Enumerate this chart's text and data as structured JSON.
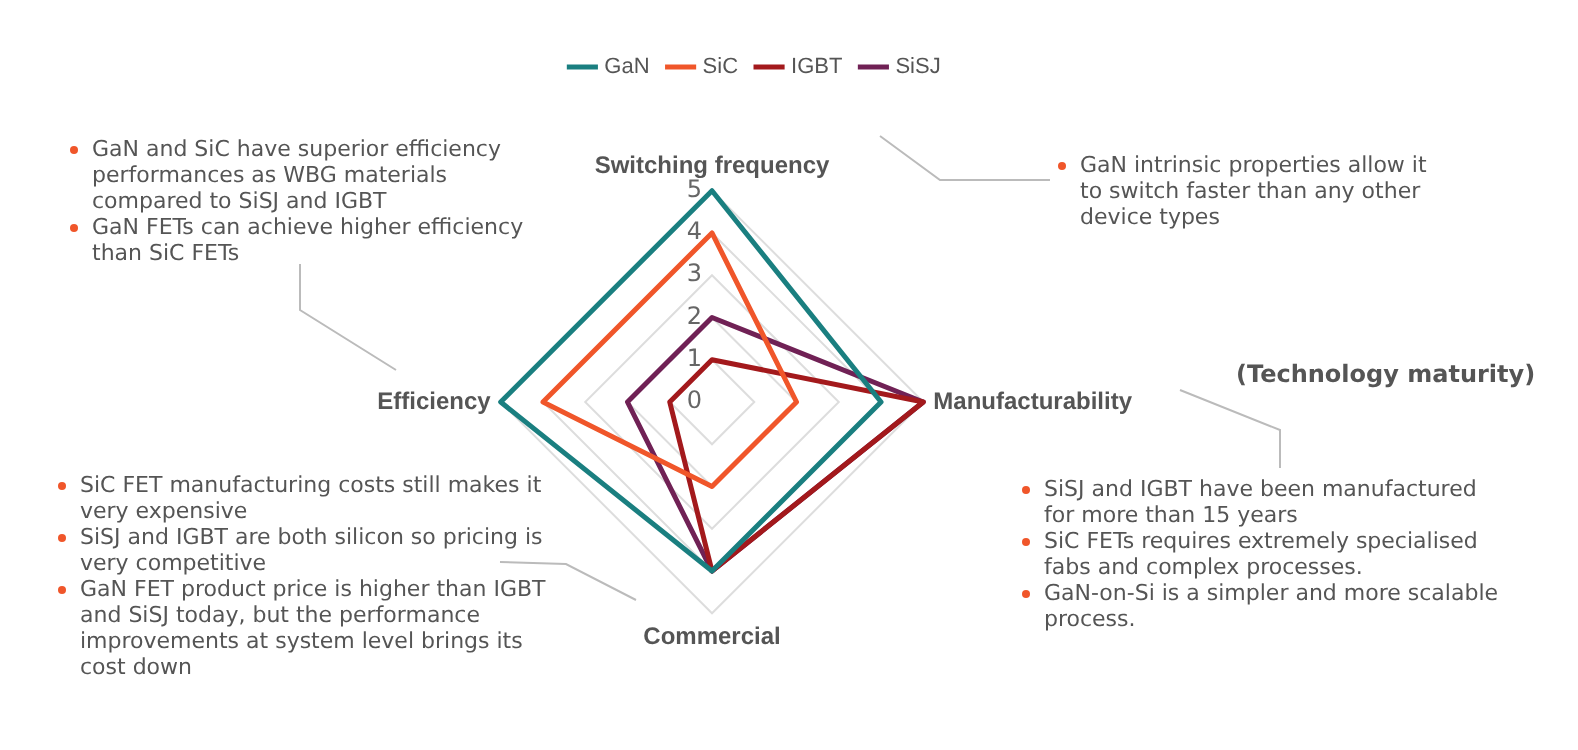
{
  "chart_data": {
    "type": "radar",
    "categories": [
      "Switching frequency",
      "Manufacturability",
      "Commercial",
      "Efficiency"
    ],
    "series": [
      {
        "name": "GaN",
        "color": "#1a7f80",
        "values": [
          5,
          4,
          4,
          5
        ]
      },
      {
        "name": "SiC",
        "color": "#f0562a",
        "values": [
          4,
          2,
          2,
          4
        ]
      },
      {
        "name": "IGBT",
        "color": "#a3191c",
        "values": [
          1,
          5,
          4,
          1
        ]
      },
      {
        "name": "SiSJ",
        "color": "#702155",
        "values": [
          2,
          5,
          4,
          2
        ]
      }
    ],
    "ylim": [
      0,
      5
    ],
    "yticks": [
      0,
      1,
      2,
      3,
      4,
      5
    ],
    "grid": true,
    "legend": "top",
    "marker": "none",
    "line_style": "solid",
    "annotations": [
      "GaN and SiC have superior efficiency performances as WBG materials compared to SiSJ and IGBT",
      "GaN FETs can achieve higher efficiency than SiC FETs",
      "GaN intrinsic properties allow it to switch faster than any other device types",
      "(Technology maturity)",
      "SiSJ and IGBT have been manufactured for more than 15 years",
      "SiC FETs requires extremely specialised fabs and complex processes.",
      "GaN-on-Si is a simpler and more scalable process.",
      "SiC FET manufacturing costs still makes it very expensive",
      "SiSJ and IGBT are both silicon so pricing is very competitive",
      "GaN FET product price is higher than IGBT and SiSJ today, but the performance improvements at system level brings its cost down"
    ]
  }
}
